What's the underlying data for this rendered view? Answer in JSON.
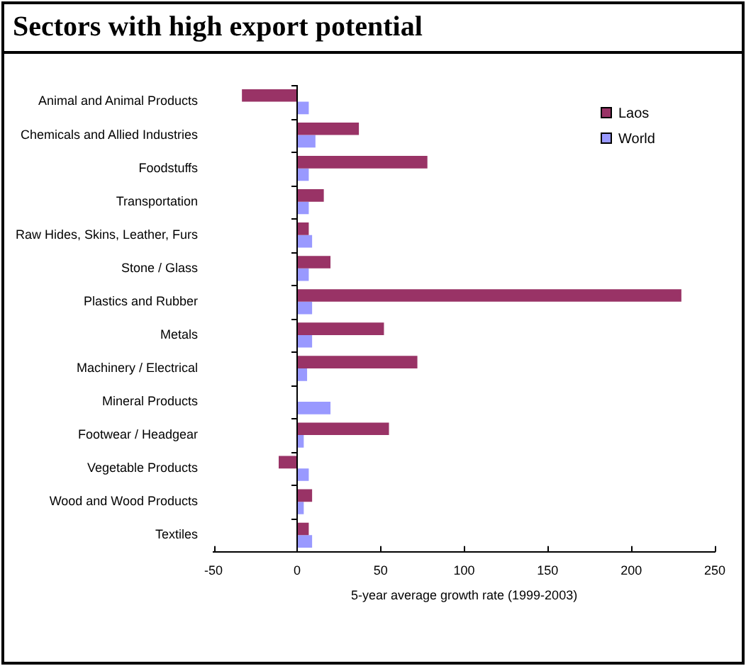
{
  "chart_data": {
    "type": "bar",
    "orientation": "horizontal",
    "title": "Sectors with high export potential",
    "xlabel": "5-year average growth rate (1999-2003)",
    "categories": [
      "Animal and Animal Products",
      "Chemicals and Allied Industries",
      "Foodstuffs",
      "Transportation",
      "Raw Hides, Skins, Leather, Furs",
      "Stone / Glass",
      "Plastics and Rubber",
      "Metals",
      "Machinery / Electrical",
      "Mineral Products",
      "Footwear / Headgear",
      "Vegetable Products",
      "Wood and Wood Products",
      "Textiles"
    ],
    "series": [
      {
        "name": "Laos",
        "color": "#993366",
        "values": [
          -33,
          37,
          78,
          16,
          7,
          20,
          230,
          52,
          72,
          0,
          55,
          -11,
          9,
          7
        ]
      },
      {
        "name": "World",
        "color": "#9999ff",
        "values": [
          7,
          11,
          7,
          7,
          9,
          7,
          9,
          9,
          6,
          20,
          4,
          7,
          4,
          9
        ]
      }
    ],
    "xlim": [
      -50,
      250
    ],
    "xticks": [
      -50,
      0,
      50,
      100,
      150,
      200,
      250
    ],
    "ref_lines": [
      {
        "axis": "x",
        "value": 0,
        "color": "#000000"
      }
    ],
    "legend": "top right"
  }
}
